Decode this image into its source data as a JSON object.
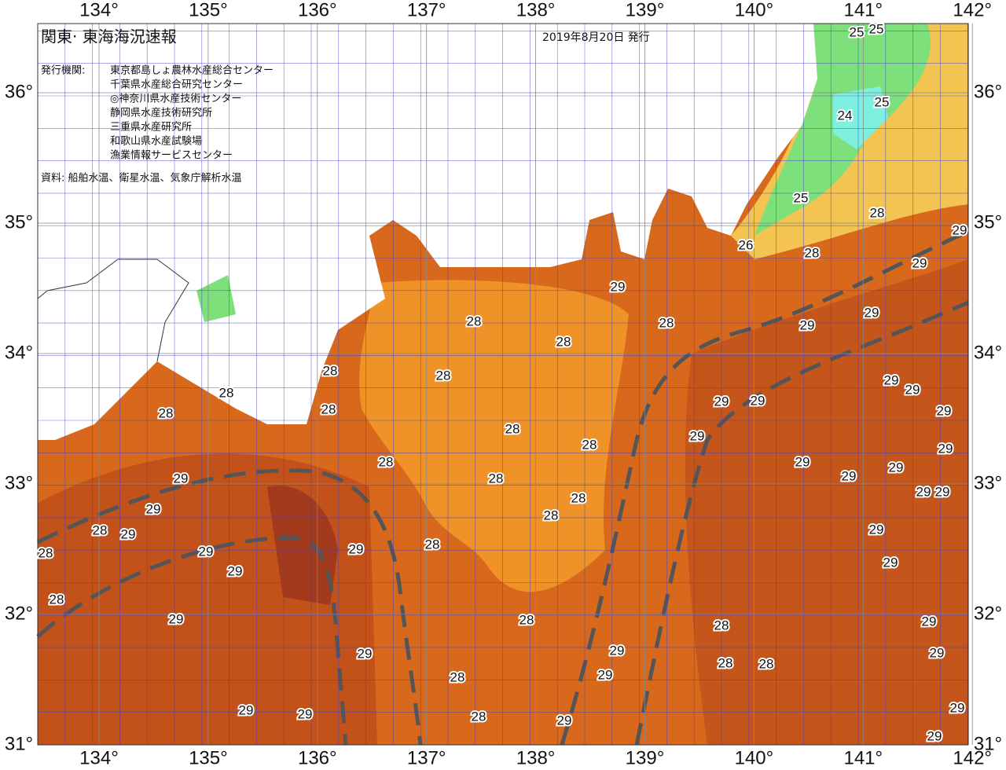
{
  "header": {
    "title": "関東· 東海海況速報",
    "date": "2019年8月20日 発行"
  },
  "issuers": {
    "label": "発行機関:",
    "names": [
      "東京都島しょ農林水産総合センター",
      "千葉県水産総合研究センター",
      "◎神奈川県水産技術センター",
      "静岡県水産技術研究所",
      "三重県水産研究所",
      "和歌山県水産試験場",
      "漁業情報サービスセンター"
    ]
  },
  "source": "資料: 船舶水温、衛星水温、気象庁解析水温",
  "map": {
    "lon_ticks": [
      {
        "value": 134,
        "label": "134°"
      },
      {
        "value": 135,
        "label": "135°"
      },
      {
        "value": 136,
        "label": "136°"
      },
      {
        "value": 137,
        "label": "137°"
      },
      {
        "value": 138,
        "label": "138°"
      },
      {
        "value": 139,
        "label": "139°"
      },
      {
        "value": 140,
        "label": "140°"
      },
      {
        "value": 141,
        "label": "141°"
      },
      {
        "value": 142,
        "label": "142°"
      }
    ],
    "lat_ticks": [
      {
        "value": 36,
        "label": "36°"
      },
      {
        "value": 35,
        "label": "35°"
      },
      {
        "value": 34,
        "label": "34°"
      },
      {
        "value": 33,
        "label": "33°"
      },
      {
        "value": 32,
        "label": "32°"
      },
      {
        "value": 31,
        "label": "31°"
      }
    ],
    "contour_labels": [
      "29",
      "28",
      "28",
      "28",
      "29",
      "29",
      "29",
      "29",
      "28",
      "28",
      "25",
      "26",
      "25",
      "24",
      "25",
      "25",
      "28",
      "28",
      "28",
      "28",
      "28",
      "28",
      "28",
      "28",
      "28",
      "28",
      "28",
      "29",
      "29",
      "28",
      "29",
      "29",
      "29",
      "29",
      "28",
      "29",
      "29",
      "29",
      "29",
      "29",
      "29",
      "29",
      "29",
      "29",
      "29",
      "29",
      "29",
      "29",
      "29",
      "29",
      "29",
      "28",
      "29",
      "29",
      "28",
      "28",
      "28",
      "29",
      "29",
      "28",
      "28",
      "29",
      "29",
      "29",
      "29",
      "29",
      "28",
      "28"
    ]
  }
}
